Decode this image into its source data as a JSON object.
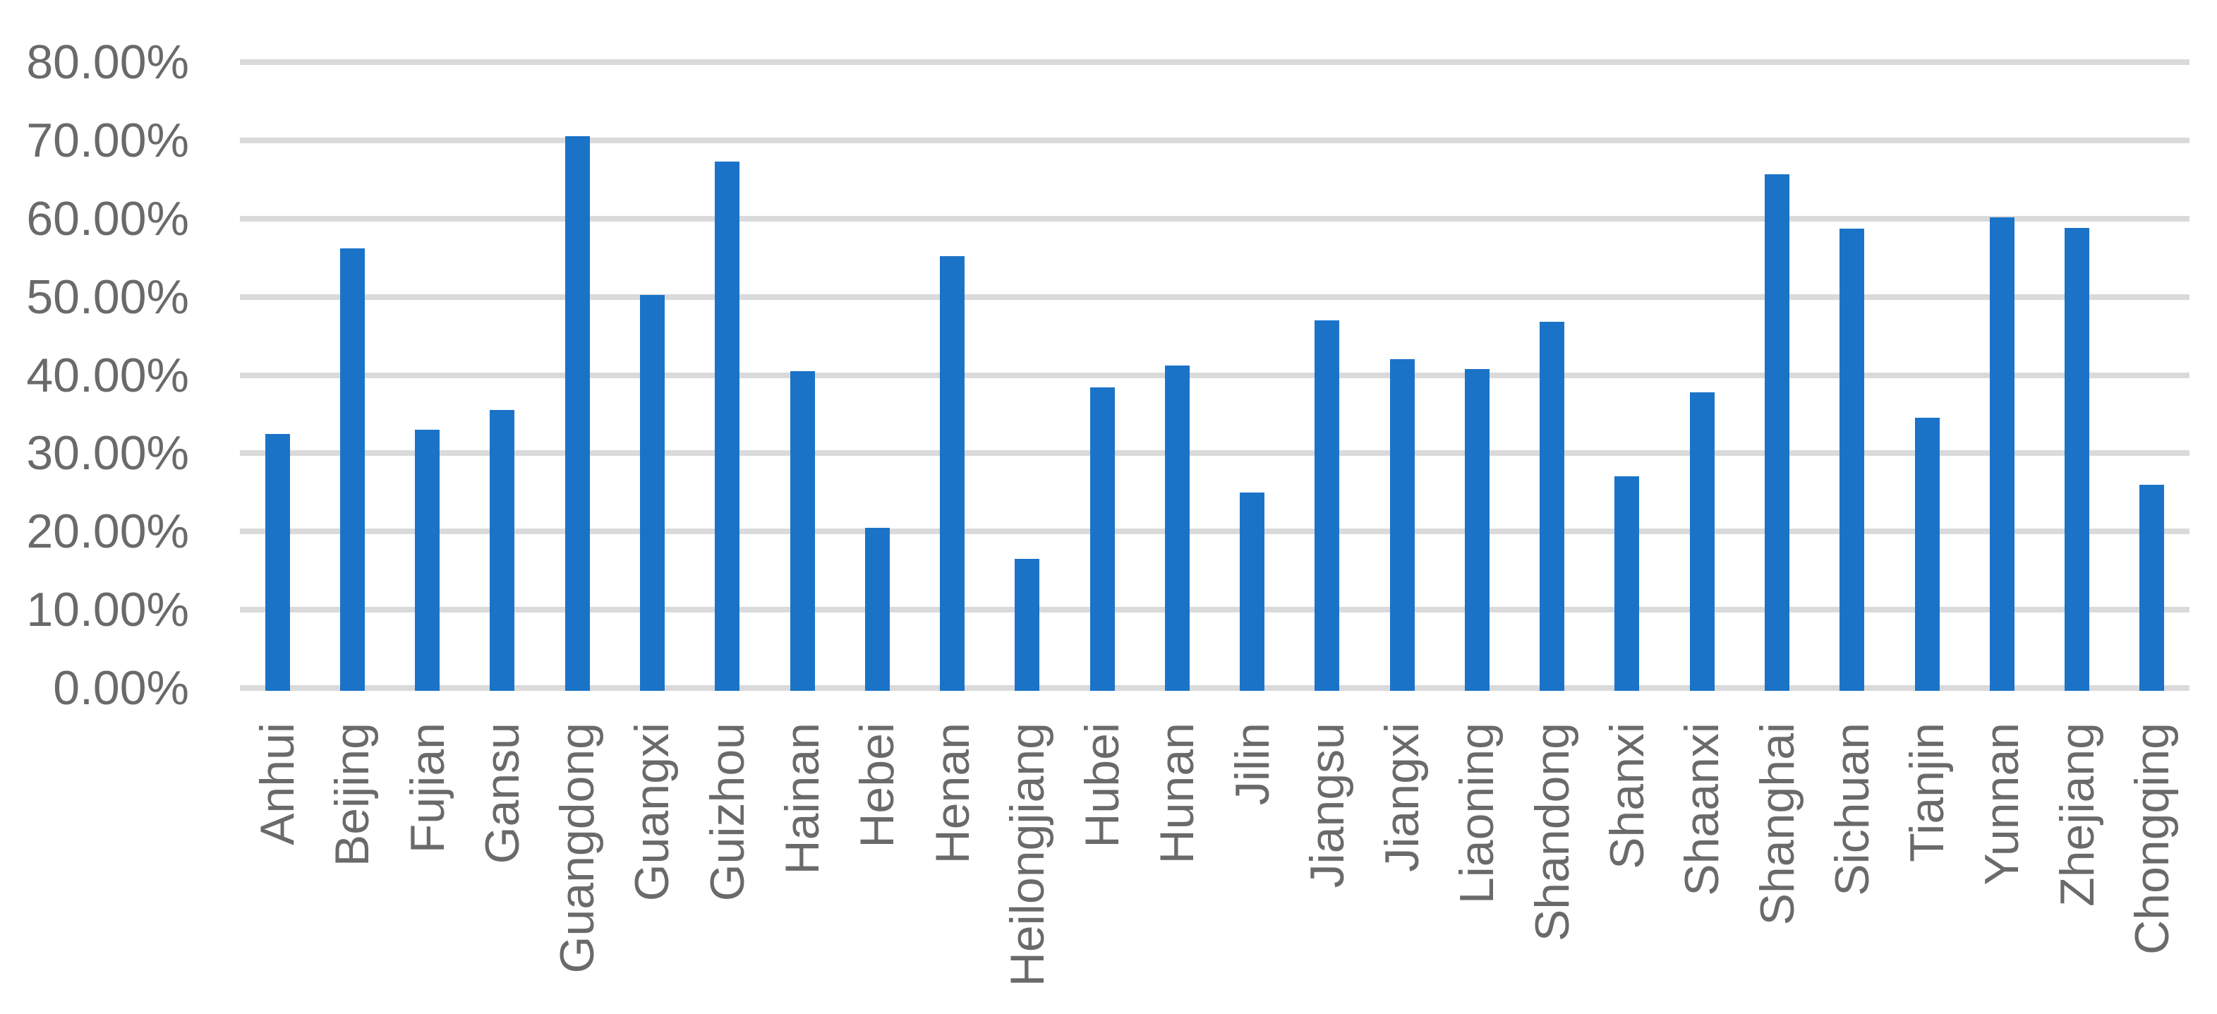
{
  "chart_data": {
    "type": "bar",
    "title": "",
    "xlabel": "",
    "ylabel": "",
    "categories": [
      "Anhui",
      "Beijing",
      "Fujian",
      "Gansu",
      "Guangdong",
      "Guangxi",
      "Guizhou",
      "Hainan",
      "Hebei",
      "Henan",
      "Heilongjiang",
      "Hubei",
      "Hunan",
      "Jilin",
      "Jiangsu",
      "Jiangxi",
      "Liaoning",
      "Shandong",
      "Shanxi",
      "Shaanxi",
      "Shanghai",
      "Sichuan",
      "Tianjin",
      "Yunnan",
      "Zhejiang",
      "Chongqing"
    ],
    "values": [
      32.5,
      56.2,
      33.0,
      35.5,
      70.5,
      50.2,
      67.3,
      40.5,
      20.5,
      55.2,
      16.5,
      38.4,
      41.2,
      25.0,
      47.0,
      42.0,
      40.8,
      46.8,
      27.1,
      37.8,
      65.7,
      58.7,
      34.5,
      60.2,
      58.8,
      26.0
    ],
    "value_unit": "%",
    "ylim": [
      0,
      80
    ],
    "ytick_step": 10,
    "ytick_labels_top_to_bottom": [
      "80.00%",
      "70.00%",
      "60.00%",
      "50.00%",
      "40.00%",
      "30.00%",
      "20.00%",
      "10.00%",
      "0.00%"
    ],
    "grid": "horizontal",
    "legend": "none",
    "x_labels_rotation_degrees": 90,
    "colors": {
      "bar": "#1B73C8",
      "gridline": "#DADADA",
      "axis_label": "#6A6A6A",
      "background": "#FFFFFF"
    }
  }
}
